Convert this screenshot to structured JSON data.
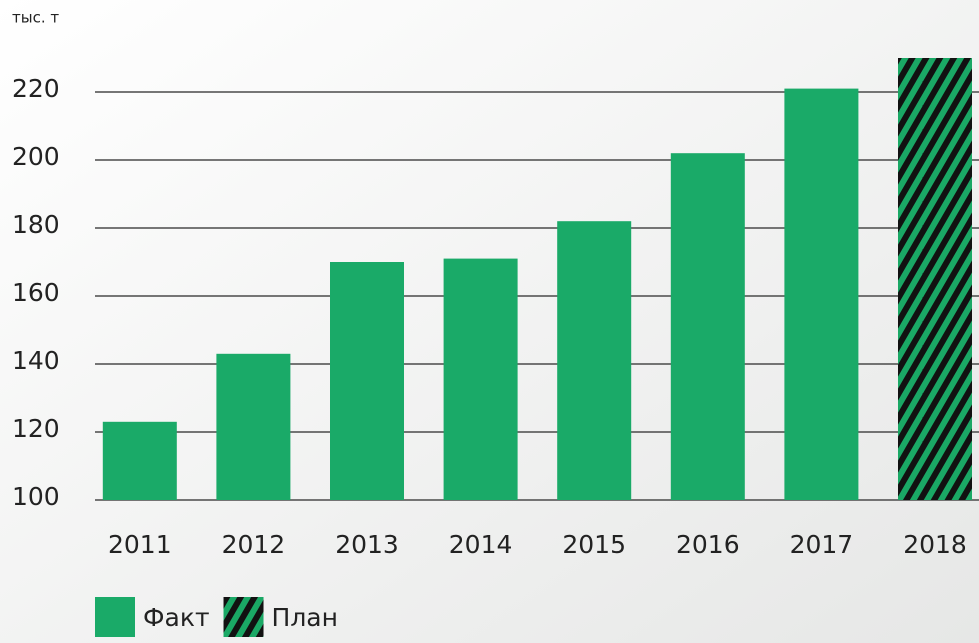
{
  "chart_data": {
    "type": "bar",
    "y_label": "тыс. т",
    "categories": [
      "2011",
      "2012",
      "2013",
      "2014",
      "2015",
      "2016",
      "2017",
      "2018"
    ],
    "series": [
      {
        "name": "Факт",
        "color": "#1aaa68",
        "values": [
          123,
          143,
          170,
          171,
          182,
          202,
          221,
          null
        ]
      },
      {
        "name": "План",
        "color": "hatch",
        "values": [
          null,
          null,
          null,
          null,
          null,
          null,
          null,
          230
        ]
      }
    ],
    "ylim": [
      100,
      235
    ],
    "yticks": [
      100,
      120,
      140,
      160,
      180,
      200,
      220
    ],
    "grid": true
  }
}
